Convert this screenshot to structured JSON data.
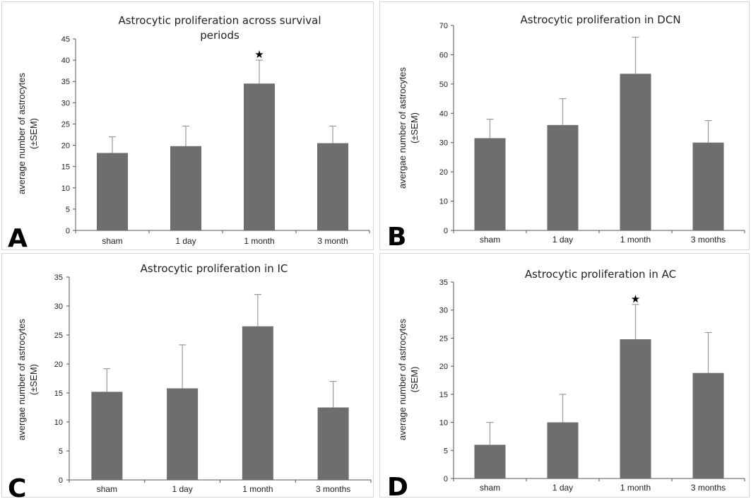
{
  "chart_data": [
    {
      "panel": "A",
      "type": "bar",
      "title_lines": [
        "Astrocytic proliferation across survival",
        "periods"
      ],
      "ylabel_lines": [
        "average number of astrocytes",
        "(±SEM)"
      ],
      "categories": [
        "sham",
        "1 day",
        "1 month",
        "3 month"
      ],
      "values": [
        18.2,
        19.8,
        34.5,
        20.5
      ],
      "errors": [
        3.8,
        4.7,
        5.5,
        4.0
      ],
      "significant": [
        "",
        "",
        "★",
        ""
      ],
      "ylim": [
        0,
        45
      ],
      "yticks": [
        0,
        5,
        10,
        15,
        20,
        25,
        30,
        35,
        40,
        45
      ],
      "bar_color": "#6e6e6e",
      "error_color": "#9a9a9a"
    },
    {
      "panel": "B",
      "type": "bar",
      "title_lines": [
        "Astrocytic proliferation in DCN"
      ],
      "ylabel_lines": [
        "avergae number of astrocytes",
        "(±SEM)"
      ],
      "categories": [
        "sham",
        "1 day",
        "1 month",
        "3 months"
      ],
      "values": [
        31.5,
        36.0,
        53.5,
        30.0
      ],
      "errors": [
        6.5,
        9.0,
        12.5,
        7.5
      ],
      "significant": [
        "",
        "",
        "",
        ""
      ],
      "ylim": [
        0,
        70
      ],
      "yticks": [
        0,
        10,
        20,
        30,
        40,
        50,
        60,
        70
      ],
      "bar_color": "#6e6e6e",
      "error_color": "#9a9a9a"
    },
    {
      "panel": "C",
      "type": "bar",
      "title_lines": [
        "Astrocytic proliferation in IC"
      ],
      "ylabel_lines": [
        "avergae number of astrocytes",
        "(±SEM)"
      ],
      "categories": [
        "sham",
        "1 day",
        "1 month",
        "3 months"
      ],
      "values": [
        15.2,
        15.8,
        26.5,
        12.5
      ],
      "errors": [
        4.0,
        7.5,
        5.5,
        4.5
      ],
      "significant": [
        "",
        "",
        "",
        ""
      ],
      "ylim": [
        0,
        35
      ],
      "yticks": [
        0,
        5,
        10,
        15,
        20,
        25,
        30,
        35
      ],
      "bar_color": "#6e6e6e",
      "error_color": "#9a9a9a"
    },
    {
      "panel": "D",
      "type": "bar",
      "title_lines": [
        "Astrocytic proliferation in AC"
      ],
      "ylabel_lines": [
        "average number of astrocytes",
        "(SEM)"
      ],
      "categories": [
        "sham",
        "1 day",
        "1 month",
        "3 months"
      ],
      "values": [
        6.0,
        10.0,
        24.8,
        18.8
      ],
      "errors": [
        4.0,
        5.0,
        6.2,
        7.2
      ],
      "significant": [
        "",
        "",
        "★",
        ""
      ],
      "ylim": [
        0,
        35
      ],
      "yticks": [
        0,
        5,
        10,
        15,
        20,
        25,
        30,
        35
      ],
      "bar_color": "#6e6e6e",
      "error_color": "#9a9a9a"
    }
  ]
}
